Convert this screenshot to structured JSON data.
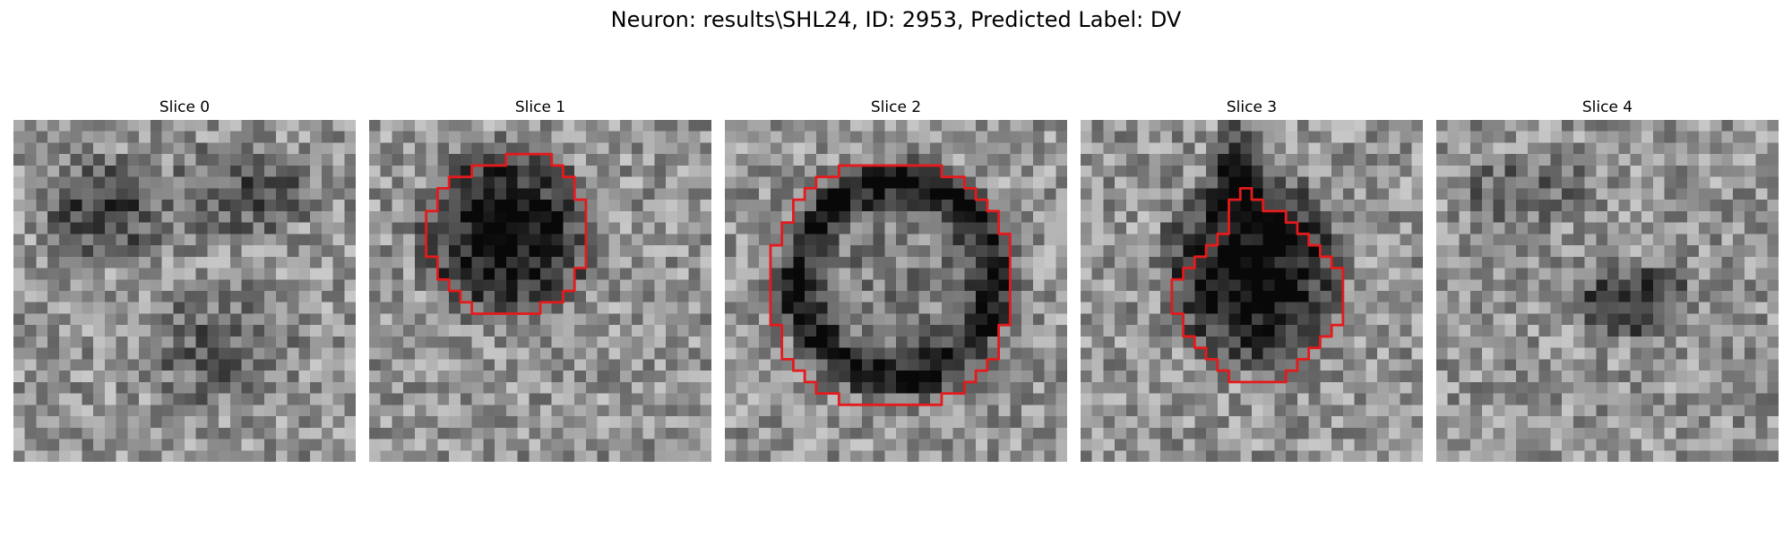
{
  "figure": {
    "title": "Neuron: results\\SHL24, ID: 2953, Predicted Label: DV",
    "contour_color": "#e41a1c"
  },
  "panels": [
    {
      "title": "Slice 0",
      "contour": null
    },
    {
      "title": "Slice 1",
      "contour": [
        [
          10,
          4
        ],
        [
          12,
          4
        ],
        [
          12,
          3
        ],
        [
          15,
          3
        ],
        [
          16,
          3
        ],
        [
          16,
          4
        ],
        [
          17,
          4
        ],
        [
          17,
          5
        ],
        [
          18,
          5
        ],
        [
          18,
          7
        ],
        [
          19,
          7
        ],
        [
          19,
          13
        ],
        [
          18,
          13
        ],
        [
          18,
          15
        ],
        [
          17,
          15
        ],
        [
          17,
          16
        ],
        [
          16,
          16
        ],
        [
          15,
          16
        ],
        [
          15,
          17
        ],
        [
          13,
          17
        ],
        [
          10,
          17
        ],
        [
          9,
          17
        ],
        [
          9,
          16
        ],
        [
          8,
          16
        ],
        [
          8,
          15
        ],
        [
          7,
          15
        ],
        [
          7,
          14
        ],
        [
          6,
          14
        ],
        [
          6,
          12
        ],
        [
          5,
          12
        ],
        [
          5,
          9
        ],
        [
          5,
          8
        ],
        [
          6,
          8
        ],
        [
          6,
          7
        ],
        [
          6,
          6
        ],
        [
          7,
          6
        ],
        [
          7,
          5
        ],
        [
          8,
          5
        ],
        [
          9,
          5
        ],
        [
          9,
          4
        ]
      ]
    },
    {
      "title": "Slice 2",
      "contour": [
        [
          8,
          5
        ],
        [
          10,
          5
        ],
        [
          10,
          4
        ],
        [
          19,
          4
        ],
        [
          19,
          5
        ],
        [
          20,
          5
        ],
        [
          21,
          5
        ],
        [
          21,
          6
        ],
        [
          22,
          6
        ],
        [
          22,
          7
        ],
        [
          23,
          7
        ],
        [
          23,
          8
        ],
        [
          24,
          8
        ],
        [
          24,
          10
        ],
        [
          25,
          10
        ],
        [
          25,
          18
        ],
        [
          24,
          18
        ],
        [
          24,
          21
        ],
        [
          23,
          21
        ],
        [
          23,
          22
        ],
        [
          22,
          22
        ],
        [
          22,
          23
        ],
        [
          21,
          23
        ],
        [
          21,
          24
        ],
        [
          19,
          24
        ],
        [
          19,
          25
        ],
        [
          10,
          25
        ],
        [
          10,
          24
        ],
        [
          8,
          24
        ],
        [
          8,
          23
        ],
        [
          7,
          23
        ],
        [
          7,
          22
        ],
        [
          6,
          22
        ],
        [
          6,
          21
        ],
        [
          5,
          21
        ],
        [
          5,
          18
        ],
        [
          4,
          18
        ],
        [
          4,
          11
        ],
        [
          5,
          11
        ],
        [
          5,
          9
        ],
        [
          6,
          9
        ],
        [
          6,
          7
        ],
        [
          7,
          7
        ],
        [
          7,
          6
        ],
        [
          8,
          6
        ]
      ]
    },
    {
      "title": "Slice 3",
      "contour": [
        [
          14,
          6
        ],
        [
          15,
          6
        ],
        [
          15,
          7
        ],
        [
          16,
          7
        ],
        [
          16,
          8
        ],
        [
          17,
          8
        ],
        [
          18,
          8
        ],
        [
          18,
          9
        ],
        [
          19,
          9
        ],
        [
          19,
          10
        ],
        [
          20,
          10
        ],
        [
          20,
          11
        ],
        [
          21,
          11
        ],
        [
          21,
          12
        ],
        [
          22,
          12
        ],
        [
          22,
          13
        ],
        [
          23,
          13
        ],
        [
          23,
          18
        ],
        [
          22,
          18
        ],
        [
          22,
          19
        ],
        [
          21,
          19
        ],
        [
          21,
          20
        ],
        [
          20,
          20
        ],
        [
          20,
          21
        ],
        [
          19,
          21
        ],
        [
          19,
          22
        ],
        [
          18,
          22
        ],
        [
          18,
          23
        ],
        [
          13,
          23
        ],
        [
          13,
          22
        ],
        [
          12,
          22
        ],
        [
          12,
          21
        ],
        [
          11,
          21
        ],
        [
          11,
          20
        ],
        [
          10,
          20
        ],
        [
          10,
          19
        ],
        [
          9,
          19
        ],
        [
          9,
          17
        ],
        [
          8,
          17
        ],
        [
          8,
          14
        ],
        [
          9,
          14
        ],
        [
          9,
          13
        ],
        [
          10,
          13
        ],
        [
          10,
          12
        ],
        [
          11,
          12
        ],
        [
          11,
          11
        ],
        [
          12,
          11
        ],
        [
          12,
          10
        ],
        [
          13,
          10
        ],
        [
          13,
          9
        ],
        [
          13,
          8
        ],
        [
          13,
          7
        ],
        [
          14,
          7
        ]
      ]
    },
    {
      "title": "Slice 4",
      "contour": null
    }
  ]
}
